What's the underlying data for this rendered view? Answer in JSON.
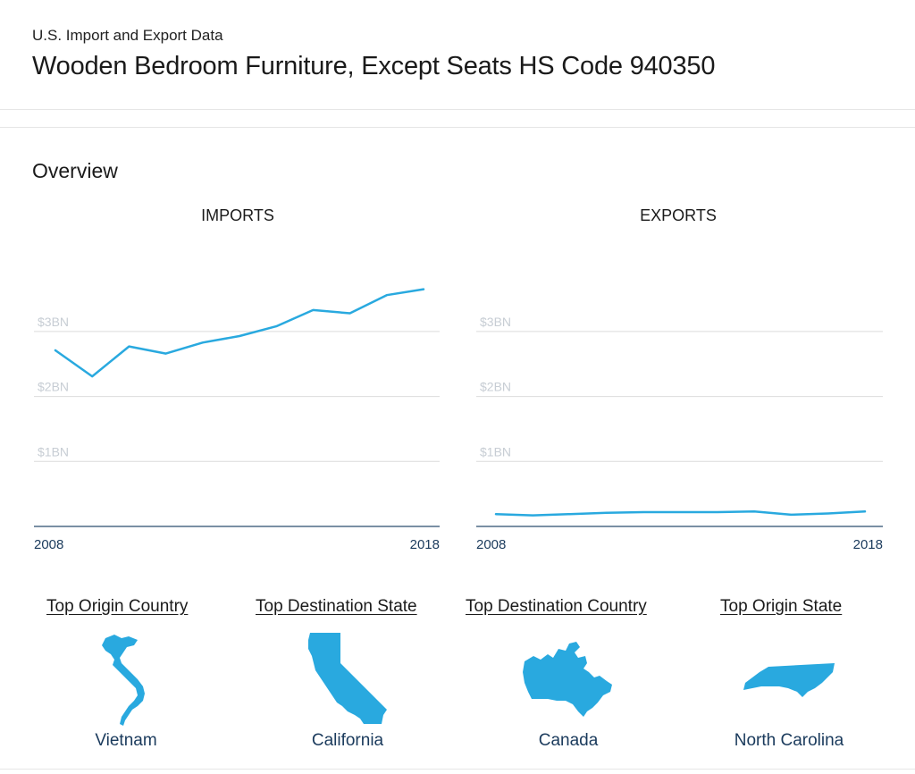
{
  "header": {
    "subtitle": "U.S. Import and Export Data",
    "title": "Wooden Bedroom Furniture, Except Seats HS Code 940350"
  },
  "overview": {
    "title": "Overview"
  },
  "accent_color": "#29a9df",
  "chart_data": [
    {
      "type": "line",
      "title": "IMPORTS",
      "x": [
        2008,
        2009,
        2010,
        2011,
        2012,
        2013,
        2014,
        2015,
        2016,
        2017,
        2018
      ],
      "x_tick_labels": [
        "2008",
        "2018"
      ],
      "y_tick_labels": [
        "$3BN",
        "$2BN",
        "$1BN"
      ],
      "y_ticks": [
        3,
        2,
        1
      ],
      "ylim": [
        0,
        3.8
      ],
      "grid": true,
      "series": [
        {
          "values": [
            2.71,
            2.31,
            2.77,
            2.66,
            2.83,
            2.93,
            3.08,
            3.33,
            3.28,
            3.56,
            3.65
          ]
        }
      ]
    },
    {
      "type": "line",
      "title": "EXPORTS",
      "x": [
        2008,
        2009,
        2010,
        2011,
        2012,
        2013,
        2014,
        2015,
        2016,
        2017,
        2018
      ],
      "x_tick_labels": [
        "2008",
        "2018"
      ],
      "y_tick_labels": [
        "$3BN",
        "$2BN",
        "$1BN"
      ],
      "y_ticks": [
        3,
        2,
        1
      ],
      "ylim": [
        0,
        3.8
      ],
      "grid": true,
      "series": [
        {
          "values": [
            0.19,
            0.17,
            0.19,
            0.21,
            0.22,
            0.22,
            0.22,
            0.23,
            0.18,
            0.2,
            0.23
          ]
        }
      ]
    }
  ],
  "cards": [
    {
      "title": "Top Origin Country",
      "name": "Vietnam",
      "icon": "vietnam-map-icon"
    },
    {
      "title": "Top Destination State",
      "name": "California",
      "icon": "california-map-icon"
    },
    {
      "title": "Top Destination Country",
      "name": "Canada",
      "icon": "canada-map-icon"
    },
    {
      "title": "Top Origin State",
      "name": "North Carolina",
      "icon": "north-carolina-map-icon"
    }
  ]
}
